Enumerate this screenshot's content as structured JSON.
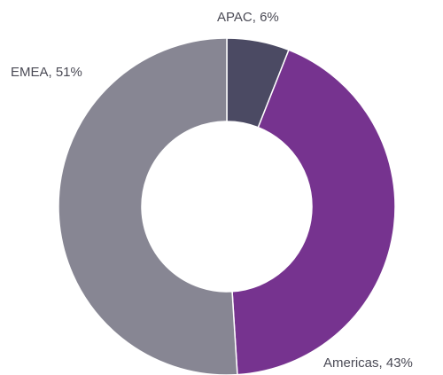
{
  "chart_data": {
    "type": "donut",
    "values": [
      6,
      43,
      51
    ],
    "value_labels": [
      "APAC, 6%",
      "Americas, 43%",
      "EMEA, 51%"
    ],
    "colors": [
      "#4b4a63",
      "#76338f",
      "#878693"
    ]
  }
}
